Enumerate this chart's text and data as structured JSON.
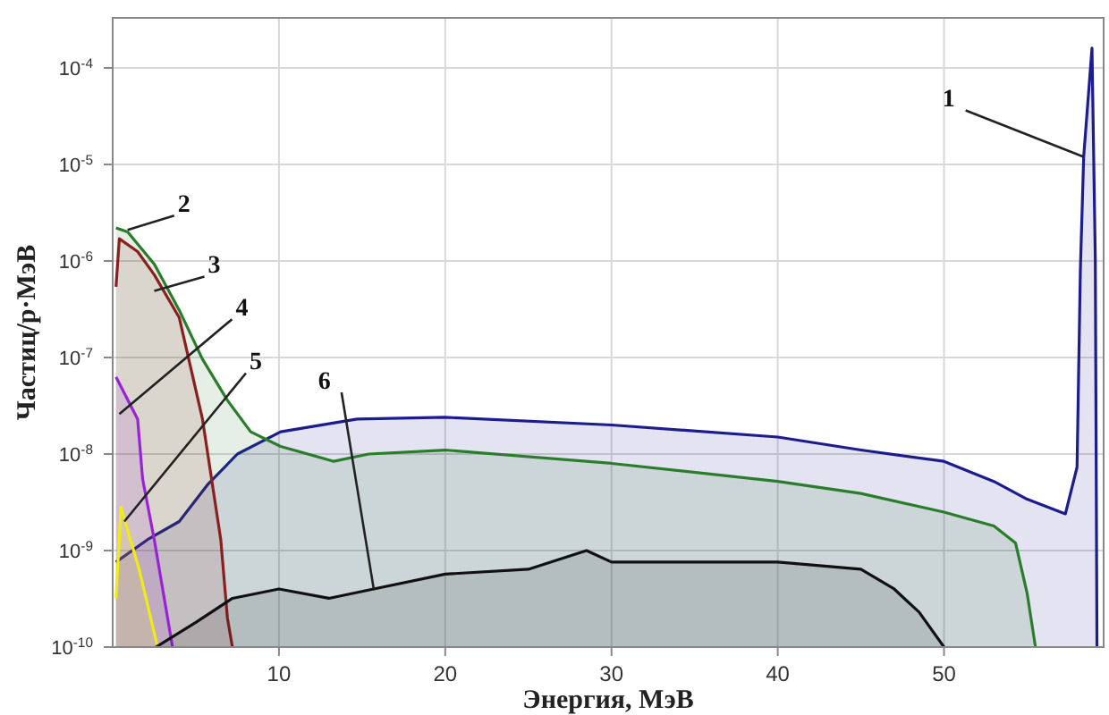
{
  "chart_data": {
    "type": "area",
    "xlabel": "Энергия, МэВ",
    "ylabel": "Частиц/р·МэВ",
    "log": "y",
    "grid": true,
    "xlim": [
      0,
      59.6
    ],
    "ylim": [
      1e-10,
      0.00033
    ],
    "xticks": [
      10,
      20,
      30,
      40,
      50
    ],
    "yticks": [
      {
        "value": 1e-10,
        "label": "10$^{-10}$"
      },
      {
        "value": 1e-09,
        "label": "10$^{-9}$"
      },
      {
        "value": 1e-08,
        "label": "10$^{-8}$"
      },
      {
        "value": 1e-07,
        "label": "10$^{-7}$"
      },
      {
        "value": 1e-06,
        "label": "10$^{-6}$"
      },
      {
        "value": 1e-05,
        "label": "10$^{-5}$"
      },
      {
        "value": 0.0001,
        "label": "10$^{-4}$"
      }
    ],
    "series": [
      {
        "color": "#1c1c8e",
        "x": [
          0.2,
          2.1,
          4,
          5.7,
          7.5,
          10.1,
          14.7,
          20,
          30,
          40,
          45,
          50,
          53,
          55,
          57.3,
          58,
          58.2,
          58.4,
          58.9,
          59.1,
          59.2
        ],
        "values": [
          7.6e-10,
          1.3e-09,
          2e-09,
          4.8e-09,
          1e-08,
          1.7e-08,
          2.3e-08,
          2.4e-08,
          2e-08,
          1.5e-08,
          1.1e-08,
          8.4e-09,
          5.2e-09,
          3.4e-09,
          2.4e-09,
          7.3e-09,
          8e-07,
          1.2e-05,
          0.00016,
          1e-06,
          1e-10
        ]
      },
      {
        "color": "#2a7d2a",
        "x": [
          0.2,
          0.9,
          2.5,
          4,
          5.4,
          6.9,
          8.3,
          10.1,
          13.3,
          15.4,
          20,
          30,
          40,
          45,
          50,
          53,
          54.3,
          55,
          55.5
        ],
        "values": [
          2.2e-06,
          2e-06,
          9.3e-07,
          3.1e-07,
          9.6e-08,
          3.6e-08,
          1.7e-08,
          1.2e-08,
          8.4e-09,
          1e-08,
          1.1e-08,
          8e-09,
          5.2e-09,
          3.9e-09,
          2.5e-09,
          1.8e-09,
          1.2e-09,
          3.6e-10,
          1e-10
        ]
      },
      {
        "color": "#8b1f1f",
        "x": [
          0.2,
          0.4,
          1.5,
          2.5,
          4,
          5.4,
          6.5,
          6.9,
          7.2
        ],
        "values": [
          5.4e-07,
          1.7e-06,
          1.25e-06,
          7.2e-07,
          2.6e-07,
          2.3e-08,
          1.3e-09,
          2e-10,
          1e-10
        ]
      },
      {
        "color": "#9a22d6",
        "x": [
          0.2,
          1.5,
          1.8,
          2.5,
          3.6
        ],
        "values": [
          6.3e-08,
          2.3e-08,
          5.5e-09,
          1.3e-09,
          1e-10
        ]
      },
      {
        "color": "#f0ec10",
        "x": [
          0.2,
          0.5,
          1.6,
          2.7
        ],
        "values": [
          3.2e-10,
          2.8e-09,
          6.3e-10,
          1e-10
        ]
      },
      {
        "color": "#111111",
        "x": [
          2.6,
          5,
          7.2,
          10,
          13,
          15.7,
          20,
          25,
          28.5,
          30,
          35,
          40,
          45,
          47,
          48.5,
          50
        ],
        "values": [
          1e-10,
          1.8e-10,
          3.2e-10,
          4e-10,
          3.2e-10,
          4e-10,
          5.7e-10,
          6.4e-10,
          1e-09,
          7.6e-10,
          7.6e-10,
          7.6e-10,
          6.4e-10,
          4e-10,
          2.3e-10,
          1e-10
        ]
      }
    ],
    "annotations": [
      {
        "text": "1",
        "x": 58.4,
        "y": 1.2e-05
      },
      {
        "text": "2",
        "x": 0.9,
        "y": 2.1e-06
      },
      {
        "text": "3",
        "x": 2.5,
        "y": 4.9e-07
      },
      {
        "text": "4",
        "x": 0.4,
        "y": 2.6e-08
      },
      {
        "text": "5",
        "x": 0.7,
        "y": 2e-09
      },
      {
        "text": "6",
        "x": 15.7,
        "y": 4e-10
      }
    ]
  }
}
